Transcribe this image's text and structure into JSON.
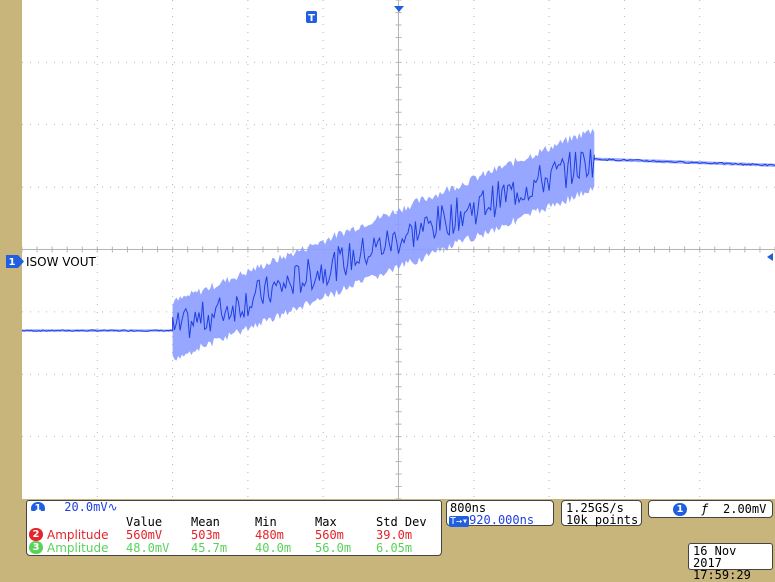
{
  "channel_label": "ISOW VOUT",
  "channel_marker": "1",
  "trigger_marker": "T",
  "ch1": {
    "badge": "1",
    "scale": "20.0mV",
    "coupling_glyph": "∿"
  },
  "timebase": {
    "scale": "800ns",
    "position": "920.000ns",
    "position_prefix": "T→▾"
  },
  "acquisition": {
    "sample_rate": "1.25GS/s",
    "record_length": "10k points"
  },
  "trigger": {
    "badge": "1",
    "slope_glyph": "ƒ",
    "level": "2.00mV"
  },
  "datetime": {
    "date": "16 Nov 2017",
    "time": "17:59:29"
  },
  "measurements": {
    "headers": [
      "Value",
      "Mean",
      "Min",
      "Max",
      "Std Dev"
    ],
    "rows": [
      {
        "badge": "2",
        "name": "Amplitude",
        "color": "#e5232b",
        "values": [
          "560mV",
          "503m",
          "480m",
          "560m",
          "39.0m"
        ]
      },
      {
        "badge": "3",
        "name": "Amplitude",
        "color": "#59d25a",
        "values": [
          "48.0mV",
          "45.7m",
          "40.0m",
          "56.0m",
          "6.05m"
        ]
      }
    ]
  },
  "colors": {
    "trace": "#1f3fe0",
    "trace_fill": "#8c9dff",
    "grid": "#b4b4b4",
    "bezel": "#c8b57c",
    "badge_blue": "#1f5fe0"
  },
  "trace_shape": {
    "segments": [
      {
        "x_div": [
          0,
          2
        ],
        "level_div": -1.3,
        "ripple_div": 0.04
      },
      {
        "x_div": [
          2,
          7.6
        ],
        "level_div": [
          -1.3,
          1.45
        ],
        "ripple_div": [
          0.9,
          0.95
        ]
      },
      {
        "x_div": [
          7.6,
          10
        ],
        "level_div": [
          1.45,
          1.35
        ],
        "ripple_div": 0.05
      }
    ]
  }
}
